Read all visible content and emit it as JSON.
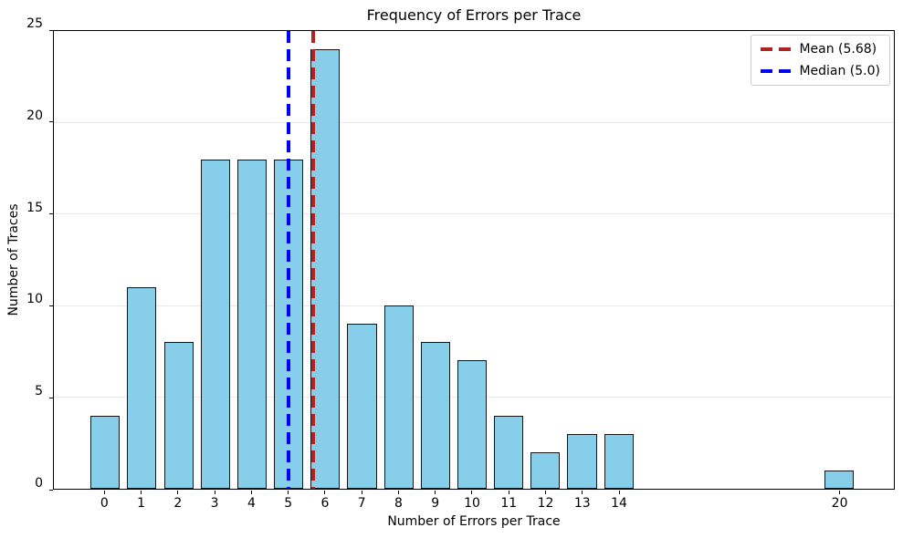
{
  "chart_data": {
    "type": "bar",
    "title": "Frequency of Errors per Trace",
    "xlabel": "Number of Errors per Trace",
    "ylabel": "Number of Traces",
    "categories": [
      0,
      1,
      2,
      3,
      4,
      5,
      6,
      7,
      8,
      9,
      10,
      11,
      12,
      13,
      14,
      20
    ],
    "values": [
      4,
      11,
      8,
      18,
      18,
      18,
      24,
      9,
      10,
      8,
      7,
      4,
      2,
      3,
      3,
      1
    ],
    "bar_width_units": 0.8,
    "xlim": [
      -1.4,
      21.5
    ],
    "ylim": [
      0,
      25
    ],
    "yticks": [
      0,
      5,
      10,
      15,
      20,
      25
    ],
    "grid": "horizontal-y",
    "legend_position": "top-right",
    "colors": {
      "bar_fill": "#87CEEB",
      "bar_edge": "#141414",
      "grid_line": "#e9e9e9",
      "axis": "#000000",
      "mean_line": "#B22222",
      "median_line": "#0000FF"
    },
    "reference_lines": [
      {
        "name": "mean",
        "x": 5.68,
        "color": "#B22222",
        "style": "dashed",
        "label": "Mean (5.68)"
      },
      {
        "name": "median",
        "x": 5.0,
        "color": "#0000FF",
        "style": "dashed",
        "label": "Median (5.0)"
      }
    ],
    "legend": {
      "items": [
        {
          "label": "Mean (5.68)",
          "color": "#B22222"
        },
        {
          "label": "Median (5.0)",
          "color": "#0000FF"
        }
      ]
    }
  }
}
